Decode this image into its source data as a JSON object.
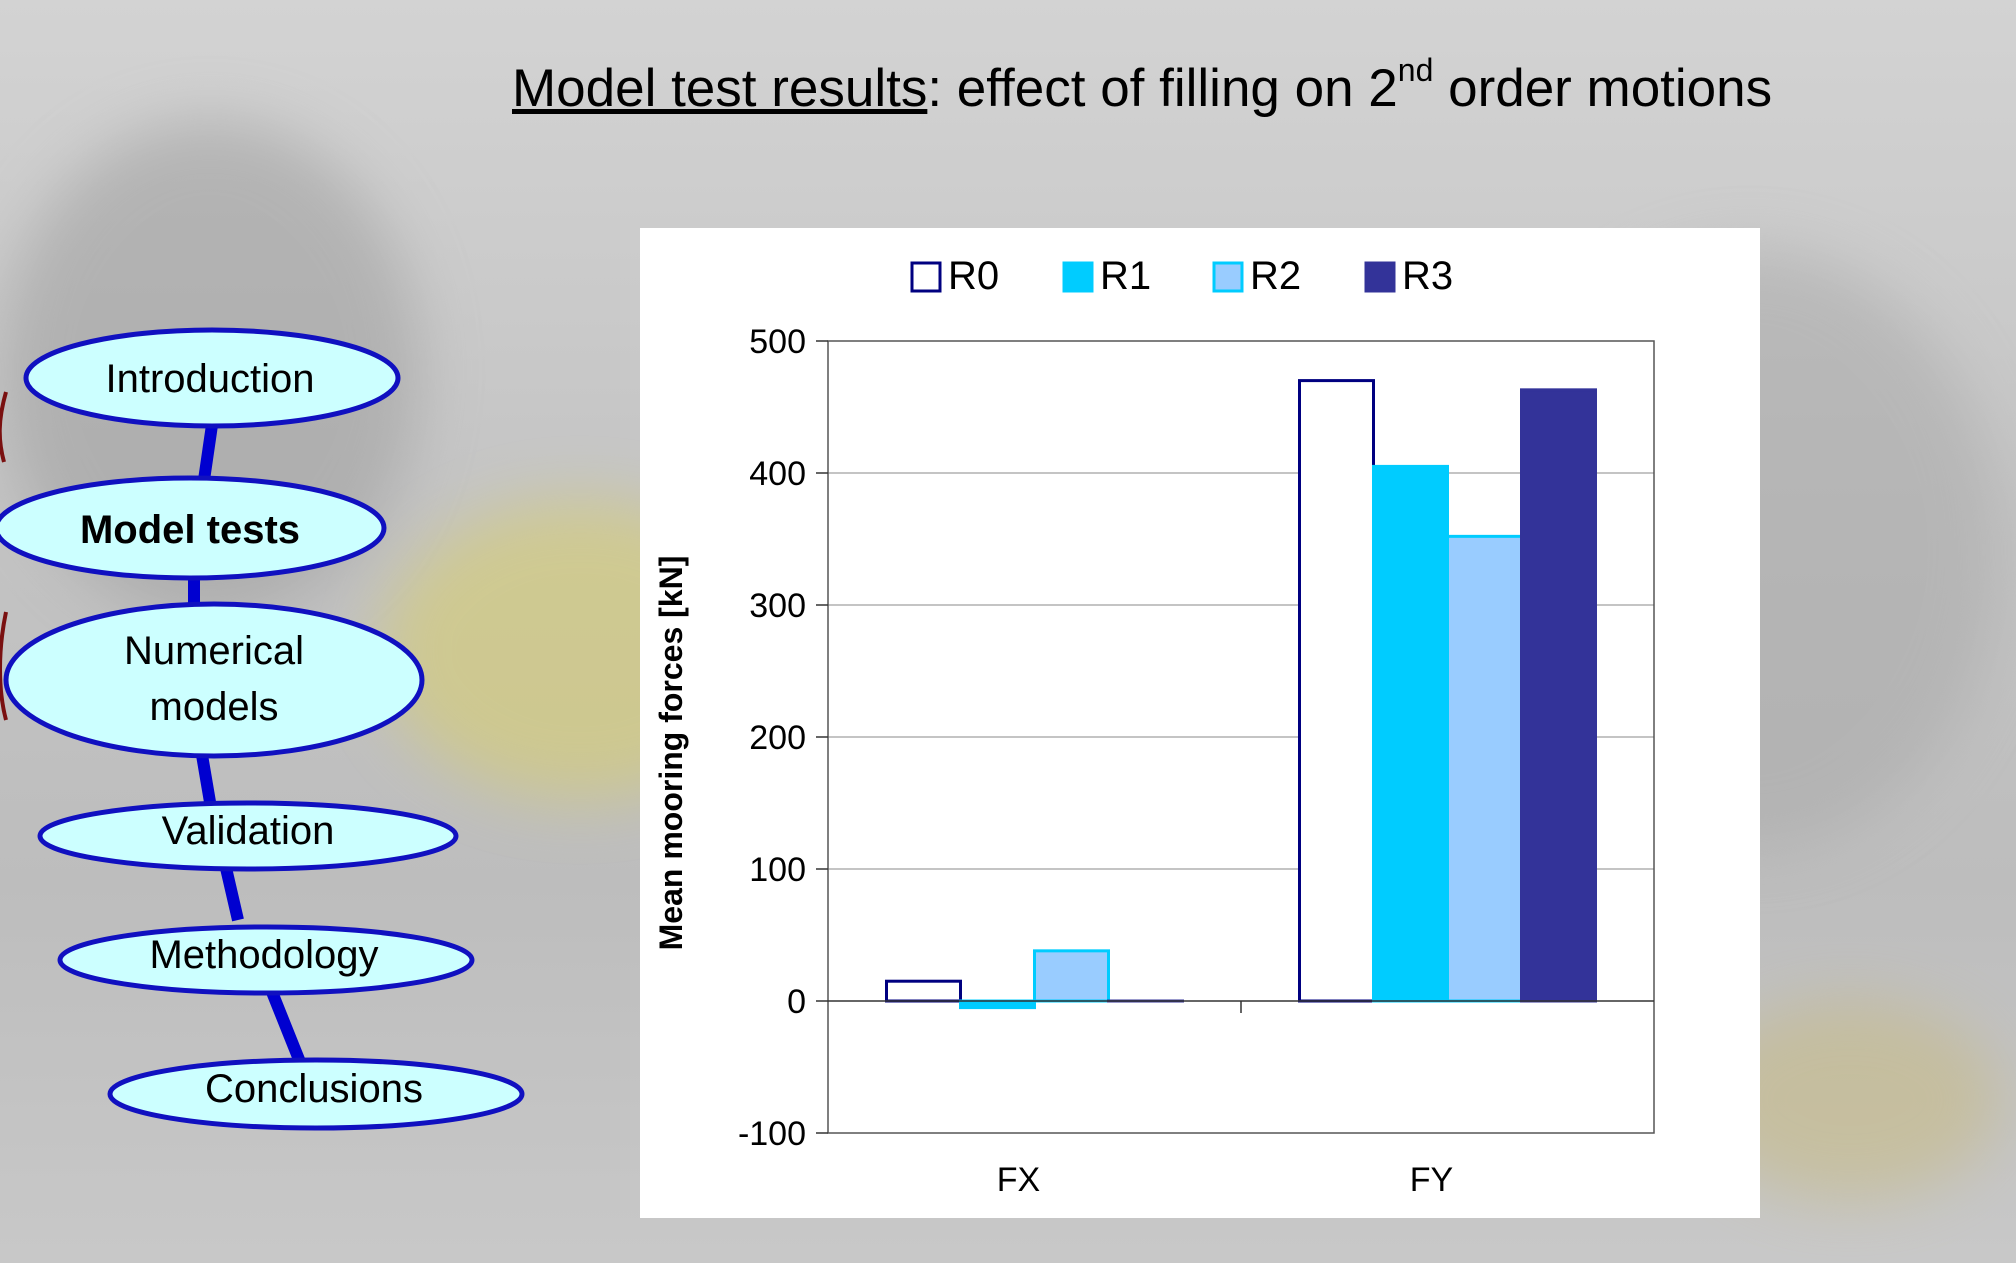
{
  "slide": {
    "title_underlined": "Model test results",
    "title_rest_pre": ": effect of filling on 2",
    "title_sup": "nd",
    "title_rest_post": " order motions"
  },
  "nav": {
    "items": [
      {
        "label": "Introduction",
        "active": false
      },
      {
        "label": "Model tests",
        "active": true
      },
      {
        "label": "Numerical models",
        "active": false
      },
      {
        "label": "Validation",
        "active": false
      },
      {
        "label": "Methodology",
        "active": false
      },
      {
        "label": "Conclusions",
        "active": false
      }
    ],
    "colors": {
      "fill": "#ccffff",
      "border": "#1010c0",
      "connector": "#0000d0"
    }
  },
  "chart_data": {
    "type": "bar",
    "categories": [
      "FX",
      "FY"
    ],
    "series": [
      {
        "name": "R0",
        "values": [
          15,
          470
        ],
        "fill": "#ffffff",
        "stroke": "#000080"
      },
      {
        "name": "R1",
        "values": [
          -5,
          405
        ],
        "fill": "#00ccff",
        "stroke": "#00ccff"
      },
      {
        "name": "R2",
        "values": [
          38,
          352
        ],
        "fill": "#99ccff",
        "stroke": "#00ccff"
      },
      {
        "name": "R3",
        "values": [
          0,
          463
        ],
        "fill": "#333399",
        "stroke": "#333399"
      }
    ],
    "ylabel": "Mean mooring forces [kN]",
    "xlabel": "",
    "ylim": [
      -100,
      500
    ],
    "yticks": [
      -100,
      0,
      100,
      200,
      300,
      400,
      500
    ],
    "grid": true,
    "legend": "top"
  }
}
